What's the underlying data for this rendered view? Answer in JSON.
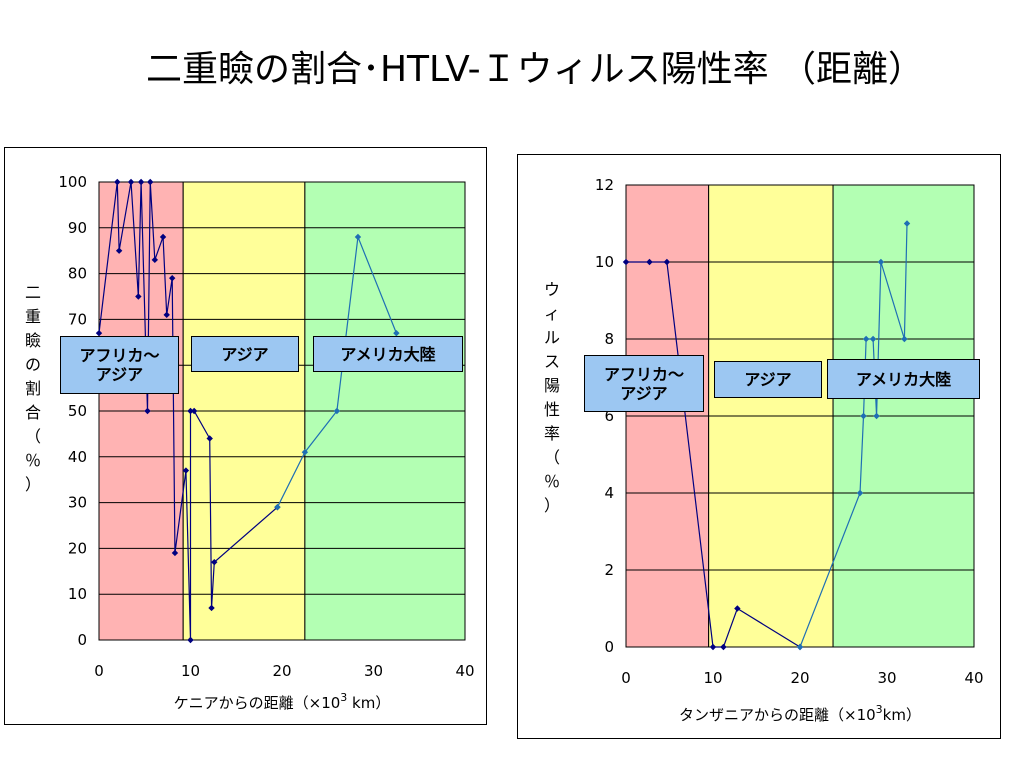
{
  "title": "二重瞼の割合･HTLV-Ｉウィルス陽性率 （距離）",
  "chart_data": [
    {
      "type": "line",
      "xlabel": "ケニアからの距離（×10",
      "xlabel_sup": "3",
      "xlabel_tail": " km）",
      "ylabel": "二重瞼の割合（％）",
      "xlim": [
        0,
        40
      ],
      "ylim": [
        0,
        100
      ],
      "xticks": [
        0,
        10,
        20,
        30,
        40
      ],
      "yticks": [
        0,
        10,
        20,
        30,
        40,
        50,
        60,
        70,
        80,
        90,
        100
      ],
      "grid": true,
      "regions": [
        {
          "label": "アフリカ～\nアジア",
          "x0": 0,
          "x1": 9.2,
          "color": "#ffb3b3"
        },
        {
          "label": "アジア",
          "x0": 9.2,
          "x1": 22.5,
          "color": "#ffff99"
        },
        {
          "label": "アメリカ大陸",
          "x0": 22.5,
          "x1": 40,
          "color": "#b3ffb3"
        }
      ],
      "series": [
        {
          "color": "#000080",
          "points": [
            [
              0,
              67
            ],
            [
              2,
              100
            ],
            [
              2.2,
              85
            ],
            [
              3.5,
              100
            ],
            [
              4.3,
              75
            ],
            [
              4.6,
              100
            ],
            [
              5.3,
              50
            ],
            [
              5.6,
              100
            ],
            [
              6.1,
              83
            ],
            [
              7,
              88
            ],
            [
              7.4,
              71
            ],
            [
              8,
              79
            ],
            [
              8.3,
              19
            ],
            [
              9.5,
              37
            ],
            [
              10,
              0
            ],
            [
              10,
              50
            ],
            [
              10.4,
              50
            ],
            [
              12.1,
              44
            ],
            [
              12.3,
              7
            ],
            [
              12.6,
              17
            ],
            [
              19.5,
              29
            ]
          ]
        },
        {
          "color": "#1f6fb4",
          "points": [
            [
              19.5,
              29
            ],
            [
              22.5,
              41
            ],
            [
              26,
              50
            ],
            [
              28.3,
              88
            ],
            [
              32.5,
              67
            ]
          ]
        }
      ]
    },
    {
      "type": "line",
      "xlabel": "タンザニアからの距離（×10",
      "xlabel_sup": "3",
      "xlabel_tail": "km）",
      "ylabel": "ウィルス陽性率（％）",
      "xlim": [
        0,
        40
      ],
      "ylim": [
        0,
        12
      ],
      "xticks": [
        0,
        10,
        20,
        30,
        40
      ],
      "yticks": [
        0,
        2,
        4,
        6,
        8,
        10,
        12
      ],
      "grid": true,
      "regions": [
        {
          "label": "アフリカ～\nアジア",
          "x0": 0,
          "x1": 9.5,
          "color": "#ffb3b3"
        },
        {
          "label": "アジア",
          "x0": 9.5,
          "x1": 23.8,
          "color": "#ffff99"
        },
        {
          "label": "アメリカ大陸",
          "x0": 23.8,
          "x1": 40,
          "color": "#b3ffb3"
        }
      ],
      "series": [
        {
          "color": "#000080",
          "points": [
            [
              0,
              10
            ],
            [
              2.7,
              10
            ],
            [
              4.7,
              10
            ],
            [
              10,
              0
            ],
            [
              11.2,
              0
            ],
            [
              12.8,
              1
            ],
            [
              20,
              0
            ]
          ]
        },
        {
          "color": "#1f6fb4",
          "points": [
            [
              20,
              0
            ],
            [
              26.9,
              4
            ],
            [
              27.3,
              6
            ],
            [
              27.6,
              8
            ],
            [
              28.4,
              8
            ],
            [
              28.8,
              6
            ],
            [
              29.3,
              10
            ],
            [
              32,
              8
            ],
            [
              32.3,
              11
            ]
          ]
        }
      ]
    }
  ]
}
